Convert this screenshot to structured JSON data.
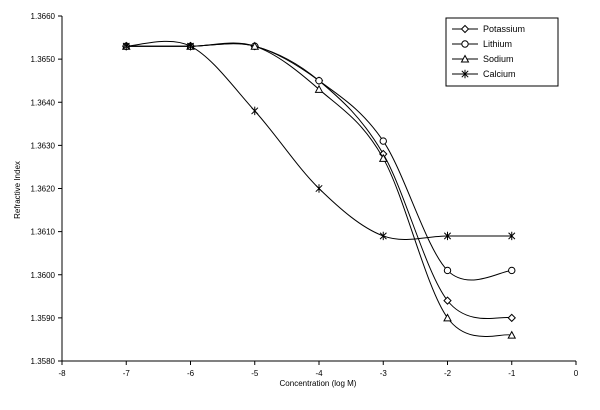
{
  "chart_data": {
    "type": "line",
    "xlabel": "Concentration (log M)",
    "ylabel": "Refractive Index",
    "xlim": [
      -8,
      0
    ],
    "ylim": [
      1.358,
      1.366
    ],
    "x_ticks": [
      "-8",
      "-7",
      "-6",
      "-5",
      "-4",
      "-3",
      "-2",
      "-1",
      "0"
    ],
    "y_ticks": [
      "1.3580",
      "1.3590",
      "1.3600",
      "1.3610",
      "1.3620",
      "1.3630",
      "1.3640",
      "1.3650",
      "1.3660"
    ],
    "grid": false,
    "legend_position": "top-right",
    "series": [
      {
        "name": "Potassium",
        "marker": "diamond",
        "x": [
          -7,
          -6,
          -5,
          -4,
          -3,
          -2,
          -1
        ],
        "y": [
          1.3653,
          1.3653,
          1.3653,
          1.3645,
          1.3628,
          1.3594,
          1.359
        ]
      },
      {
        "name": "Lithium",
        "marker": "circle",
        "x": [
          -7,
          -6,
          -5,
          -4,
          -3,
          -2,
          -1
        ],
        "y": [
          1.3653,
          1.3653,
          1.3653,
          1.3645,
          1.3631,
          1.3601,
          1.3601
        ]
      },
      {
        "name": "Sodium",
        "marker": "triangle",
        "x": [
          -7,
          -6,
          -5,
          -4,
          -3,
          -2,
          -1
        ],
        "y": [
          1.3653,
          1.3653,
          1.3653,
          1.3643,
          1.3627,
          1.359,
          1.3586
        ]
      },
      {
        "name": "Calcium",
        "marker": "star",
        "x": [
          -7,
          -6,
          -5,
          -4,
          -3,
          -2,
          -1
        ],
        "y": [
          1.3653,
          1.3653,
          1.3638,
          1.362,
          1.3609,
          1.3609,
          1.3609
        ]
      }
    ]
  }
}
